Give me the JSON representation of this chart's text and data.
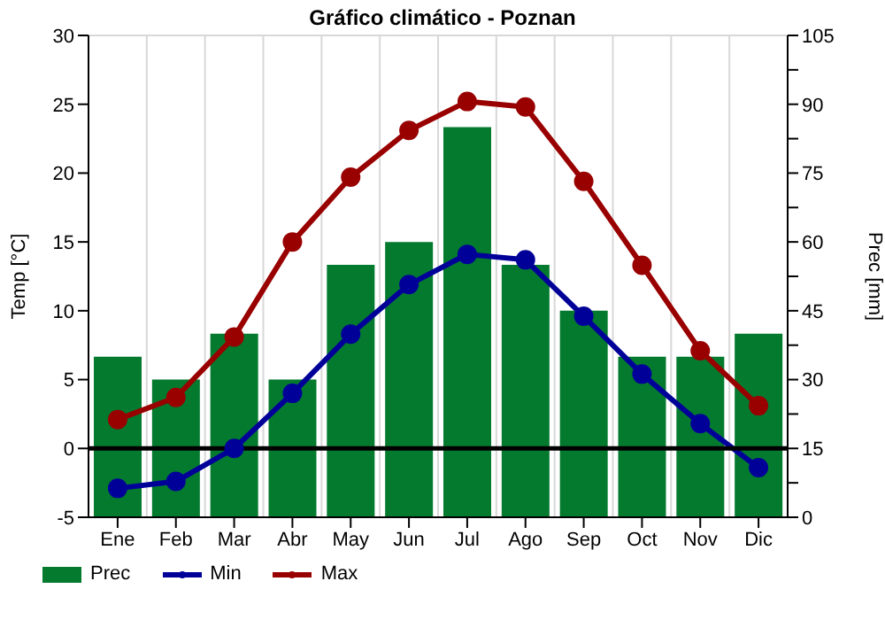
{
  "chart_data": {
    "type": "bar",
    "title": "Gráfico climático - Poznan",
    "ylabel": "Temp [°C]",
    "y2label": "Prec [mm]",
    "categories": [
      "Ene",
      "Feb",
      "Mar",
      "Abr",
      "May",
      "Jun",
      "Jul",
      "Ago",
      "Sep",
      "Oct",
      "Nov",
      "Dic"
    ],
    "series": [
      {
        "name": "Prec",
        "axis": "y2",
        "color": "#047a2f",
        "values": [
          35,
          30,
          40,
          30,
          55,
          60,
          85,
          55,
          45,
          35,
          35,
          40
        ]
      },
      {
        "name": "Min",
        "type": "line",
        "color": "#000099",
        "values": [
          -2.9,
          -2.4,
          0,
          4,
          8.3,
          11.9,
          14.1,
          13.7,
          9.6,
          5.4,
          1.8,
          -1.4
        ]
      },
      {
        "name": "Max",
        "type": "line",
        "color": "#990000",
        "values": [
          2.1,
          3.7,
          8.1,
          15,
          19.7,
          23.1,
          25.2,
          24.8,
          19.4,
          13.3,
          7.1,
          3.1
        ]
      }
    ],
    "ylim": [
      -5,
      30
    ],
    "yticks": [
      -5,
      0,
      5,
      10,
      15,
      20,
      25,
      30
    ],
    "y2lim": [
      0,
      105
    ],
    "y2ticks": [
      0,
      {
        "value": 7.5,
        "label": null
      },
      15,
      {
        "value": 22.5,
        "label": null
      },
      30,
      {
        "value": 37.5,
        "label": null
      },
      45,
      {
        "value": 52.5,
        "label": null
      },
      60,
      {
        "value": 67.5,
        "label": null
      },
      75,
      {
        "value": 82.5,
        "label": null
      },
      90,
      {
        "value": 97.5,
        "label": null
      },
      105
    ],
    "ref_lines": [
      {
        "axis": "y",
        "value": 0,
        "color": "#000000"
      }
    ],
    "grid": true,
    "legend": "bottom left",
    "marker": "circle",
    "line_style": "solid"
  }
}
